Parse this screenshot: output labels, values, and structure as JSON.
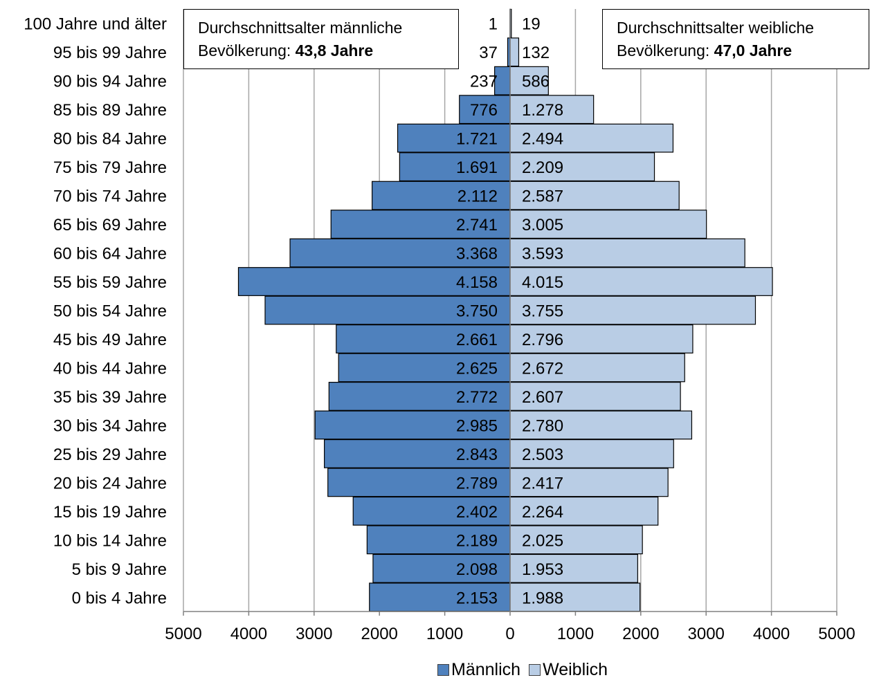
{
  "chart_data": {
    "type": "bar",
    "orientation": "horizontal-population-pyramid",
    "categories": [
      "100 Jahre und älter",
      "95 bis 99 Jahre",
      "90 bis 94 Jahre",
      "85 bis 89 Jahre",
      "80 bis 84 Jahre",
      "75 bis 79 Jahre",
      "70 bis 74 Jahre",
      "65 bis 69 Jahre",
      "60 bis 64 Jahre",
      "55 bis 59 Jahre",
      "50 bis 54 Jahre",
      "45 bis 49 Jahre",
      "40 bis 44 Jahre",
      "35 bis 39 Jahre",
      "30 bis 34 Jahre",
      "25 bis 29 Jahre",
      "20 bis 24 Jahre",
      "15 bis 19 Jahre",
      "10 bis 14 Jahre",
      "5 bis 9 Jahre",
      "0 bis 4 Jahre"
    ],
    "series": [
      {
        "name": "Männlich",
        "color": "#4F81BD",
        "values": [
          1,
          37,
          237,
          776,
          1721,
          1691,
          2112,
          2741,
          3368,
          4158,
          3750,
          2661,
          2625,
          2772,
          2985,
          2843,
          2789,
          2402,
          2189,
          2098,
          2153
        ],
        "labels": [
          "1",
          "37",
          "237",
          "776",
          "1.721",
          "1.691",
          "2.112",
          "2.741",
          "3.368",
          "4.158",
          "3.750",
          "2.661",
          "2.625",
          "2.772",
          "2.985",
          "2.843",
          "2.789",
          "2.402",
          "2.189",
          "2.098",
          "2.153"
        ]
      },
      {
        "name": "Weiblich",
        "color": "#B9CDE5",
        "values": [
          19,
          132,
          586,
          1278,
          2494,
          2209,
          2587,
          3005,
          3593,
          4015,
          3755,
          2796,
          2672,
          2607,
          2780,
          2503,
          2417,
          2264,
          2025,
          1953,
          1988
        ],
        "labels": [
          "19",
          "132",
          "586",
          "1.278",
          "2.494",
          "2.209",
          "2.587",
          "3.005",
          "3.593",
          "4.015",
          "3.755",
          "2.796",
          "2.672",
          "2.607",
          "2.780",
          "2.503",
          "2.417",
          "2.264",
          "2.025",
          "1.953",
          "1.988"
        ]
      }
    ],
    "xlim": [
      -5000,
      5000
    ],
    "xticks": [
      -5000,
      -4000,
      -3000,
      -2000,
      -1000,
      0,
      1000,
      2000,
      3000,
      4000,
      5000
    ],
    "xtick_labels": [
      "5000",
      "4000",
      "3000",
      "2000",
      "1000",
      "0",
      "1000",
      "2000",
      "3000",
      "4000",
      "5000"
    ],
    "grid": "vertical",
    "legend_position": "bottom",
    "title": "",
    "xlabel": "",
    "ylabel": ""
  },
  "annotations": {
    "male": {
      "line1": "Durchschnittsalter männliche",
      "line2_prefix": "Bevölkerung: ",
      "line2_value": "43,8 Jahre"
    },
    "female": {
      "line1": "Durchschnittsalter weibliche",
      "line2_prefix": "Bevölkerung: ",
      "line2_value": "47,0 Jahre"
    }
  },
  "legend": {
    "male_label": "Männlich",
    "female_label": "Weiblich"
  }
}
